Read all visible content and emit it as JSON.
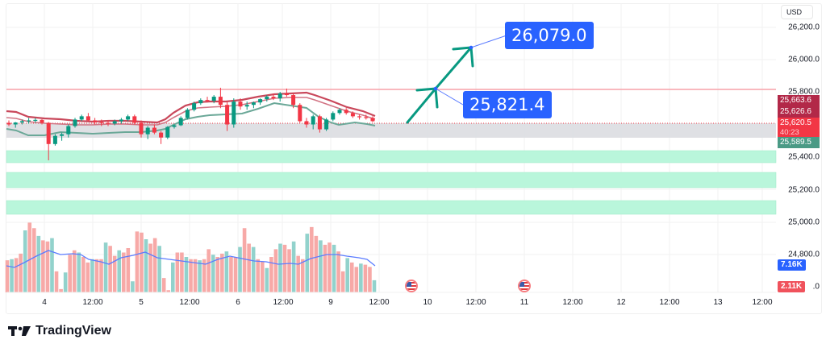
{
  "chart_data": {
    "type": "candlestick",
    "title": "",
    "currency": "USD",
    "price_axis": {
      "ticks": [
        26200.0,
        26000.0,
        25800.0,
        25400.0,
        25200.0,
        25000.0,
        24800.0
      ],
      "tick_labels": [
        "26,200.0",
        "26,000.0",
        "25,800.0",
        "25,400.0",
        "25,200.0",
        "25,000.0",
        "24,800.0"
      ],
      "range": [
        24700,
        26350
      ]
    },
    "time_axis": {
      "tick_labels": [
        "4",
        "12:00",
        "5",
        "12:00",
        "6",
        "12:00",
        "9",
        "12:00",
        "10",
        "12:00",
        "11",
        "12:00",
        "12",
        "12:00",
        "13",
        "12:00"
      ]
    },
    "price_tags": [
      {
        "value": "25,663.6",
        "color": "#b22848"
      },
      {
        "value": "25,626.6",
        "color": "#b22848"
      },
      {
        "value": "25,620.5",
        "sub": "40:23",
        "color": "#f23645"
      },
      {
        "value": "25,589.5",
        "color": "#4a9a85"
      }
    ],
    "resistance_line": 25821.4,
    "current_price": 25620.5,
    "consolidation_zone": [
      25589.5,
      25620.5
    ],
    "demand_zones": [
      [
        25380,
        25460
      ],
      [
        25220,
        25310
      ],
      [
        25100,
        25170
      ]
    ],
    "projection": {
      "arrow_color": "#089981",
      "targets": [
        {
          "label": "25,821.4",
          "value": 25821.4
        },
        {
          "label": "26,079.0",
          "value": 26079.0
        }
      ]
    },
    "volume": {
      "tags": [
        {
          "value": "7.16K",
          "color": "#2962ff"
        },
        {
          "value": "2.11K",
          "color": "#f23645"
        }
      ],
      "ma_color": "#5b7cff"
    },
    "events": [
      {
        "icon": "us-flag",
        "position": "before 10"
      },
      {
        "icon": "us-flag",
        "position": "11"
      }
    ],
    "candles_approx": [
      [
        25610,
        25625,
        25590,
        25600
      ],
      [
        25600,
        25615,
        25580,
        25612
      ],
      [
        25612,
        25630,
        25600,
        25620
      ],
      [
        25620,
        25640,
        25605,
        25625
      ],
      [
        25625,
        25640,
        25610,
        25628
      ],
      [
        25628,
        25632,
        25600,
        25610
      ],
      [
        25610,
        25615,
        25380,
        25480
      ],
      [
        25480,
        25540,
        25470,
        25530
      ],
      [
        25530,
        25550,
        25500,
        25540
      ],
      [
        25540,
        25600,
        25520,
        25590
      ],
      [
        25590,
        25640,
        25580,
        25630
      ],
      [
        25630,
        25660,
        25620,
        25650
      ],
      [
        25650,
        25670,
        25620,
        25625
      ],
      [
        25625,
        25640,
        25600,
        25615
      ],
      [
        25615,
        25630,
        25590,
        25610
      ],
      [
        25610,
        25625,
        25590,
        25605
      ],
      [
        25605,
        25630,
        25595,
        25620
      ],
      [
        25620,
        25640,
        25605,
        25630
      ],
      [
        25630,
        25660,
        25620,
        25650
      ],
      [
        25650,
        25660,
        25600,
        25610
      ],
      [
        25610,
        25625,
        25520,
        25540
      ],
      [
        25540,
        25590,
        25510,
        25580
      ],
      [
        25580,
        25600,
        25540,
        25550
      ],
      [
        25550,
        25560,
        25480,
        25520
      ],
      [
        25520,
        25590,
        25510,
        25585
      ],
      [
        25585,
        25600,
        25575,
        25595
      ],
      [
        25595,
        25650,
        25590,
        25640
      ],
      [
        25640,
        25700,
        25630,
        25690
      ],
      [
        25690,
        25740,
        25680,
        25730
      ],
      [
        25730,
        25760,
        25720,
        25750
      ],
      [
        25750,
        25770,
        25735,
        25745
      ],
      [
        25745,
        25780,
        25730,
        25770
      ],
      [
        25770,
        25825,
        25700,
        25720
      ],
      [
        25720,
        25740,
        25560,
        25600
      ],
      [
        25600,
        25760,
        25580,
        25740
      ],
      [
        25740,
        25760,
        25690,
        25710
      ],
      [
        25710,
        25740,
        25690,
        25720
      ],
      [
        25720,
        25740,
        25700,
        25735
      ],
      [
        25735,
        25760,
        25720,
        25755
      ],
      [
        25755,
        25780,
        25740,
        25770
      ],
      [
        25770,
        25790,
        25750,
        25760
      ],
      [
        25760,
        25800,
        25740,
        25790
      ],
      [
        25790,
        25820,
        25770,
        25780
      ],
      [
        25780,
        25790,
        25700,
        25720
      ],
      [
        25720,
        25730,
        25610,
        25620
      ],
      [
        25620,
        25640,
        25580,
        25600
      ],
      [
        25600,
        25660,
        25570,
        25650
      ],
      [
        25650,
        25660,
        25550,
        25570
      ],
      [
        25570,
        25640,
        25560,
        25630
      ],
      [
        25630,
        25680,
        25620,
        25670
      ],
      [
        25670,
        25700,
        25660,
        25690
      ],
      [
        25690,
        25700,
        25660,
        25670
      ],
      [
        25670,
        25680,
        25640,
        25650
      ],
      [
        25650,
        25660,
        25630,
        25645
      ],
      [
        25645,
        25660,
        25630,
        25640
      ],
      [
        25640,
        25650,
        25615,
        25620
      ]
    ],
    "volume_values_approx": [
      2.9,
      3.0,
      3.1,
      3.5,
      5.6,
      6.3,
      5.8,
      5.1,
      4.7,
      4.6,
      4.9,
      1.9,
      0.3,
      1.8,
      3.4,
      3.8,
      3.6,
      3.2,
      2.7,
      3.0,
      3.0,
      3.0,
      4.5,
      4.2,
      3.3,
      3.8,
      3.6,
      4.0,
      1.0,
      5.5,
      5.4,
      4.8,
      4.4,
      4.9,
      4.2,
      1.3,
      0.2,
      2.7,
      3.6,
      3.6,
      3.2,
      3.0,
      3.0,
      2.9,
      3.0,
      3.9,
      3.4,
      3.2,
      3.5,
      3.7,
      3.2,
      3.2,
      4.1,
      5.8,
      4.4,
      4.1,
      3.0,
      2.8,
      2.2,
      3.2,
      3.9,
      4.4,
      4.3,
      3.9,
      4.6,
      3.3,
      3.0,
      5.3,
      5.9,
      5.1,
      4.7,
      4.3,
      4.5,
      4.3,
      3.7,
      1.9,
      3.1,
      2.7,
      2.3,
      2.6,
      2.5,
      2.3,
      1.1
    ],
    "xlabel": "",
    "ylabel": ""
  },
  "header": {
    "currency_label": "USD"
  },
  "callouts": {
    "target_upper": "26,079.0",
    "target_lower": "25,821.4"
  },
  "axis": {
    "price": [
      "26,200.0",
      "26,000.0",
      "25,800.0",
      "25,400.0",
      "25,200.0",
      "25,000.0",
      "24,800.0"
    ],
    "time": [
      "4",
      "12:00",
      "5",
      "12:00",
      "6",
      "12:00",
      "9",
      "12:00",
      "10",
      "12:00",
      "11",
      "12:00",
      "12",
      "12:00",
      "13",
      "12:00"
    ]
  },
  "tags": {
    "t1": "25,663.6",
    "t2": "25,626.6",
    "t3": "25,620.5",
    "t3_timer": "40:23",
    "t4": "25,589.5",
    "vol1": "7.16K",
    "vol2": "2.11K",
    "vol2_suffix": ".0"
  },
  "footer": {
    "brand": "TradingView"
  }
}
